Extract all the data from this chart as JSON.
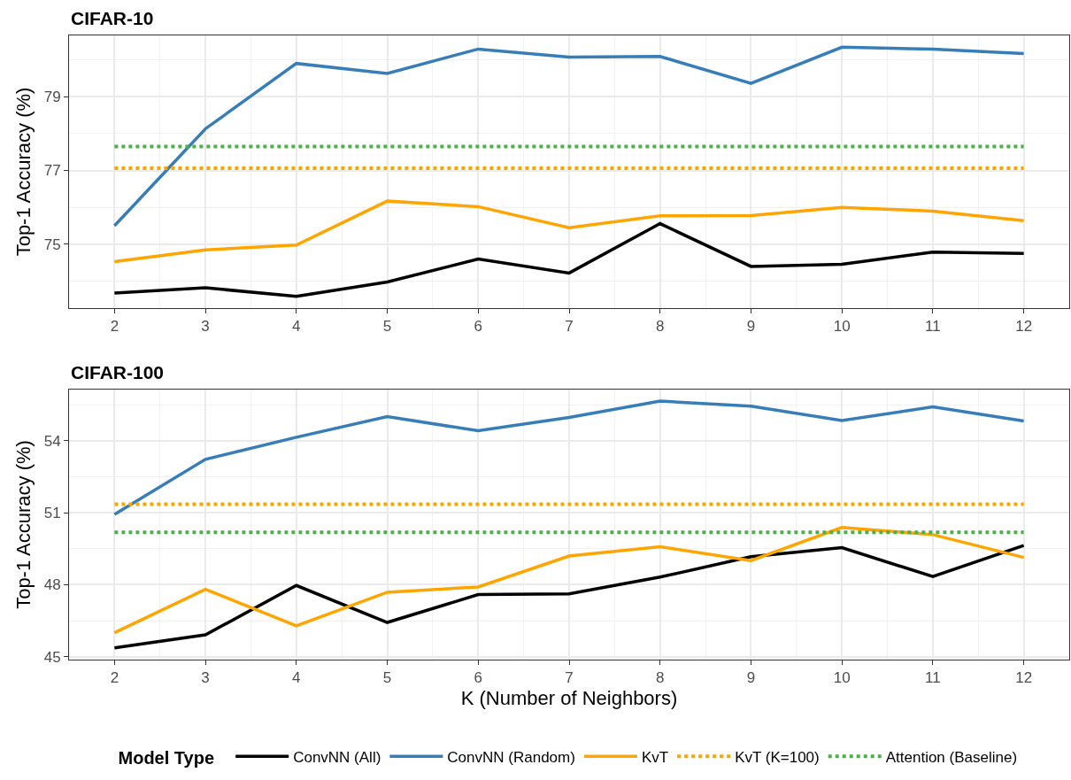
{
  "chart_data": [
    {
      "type": "line",
      "title": "CIFAR-10",
      "ylabel": "Top-1 Accuracy (%)",
      "x": [
        2,
        3,
        4,
        5,
        6,
        7,
        8,
        9,
        10,
        11,
        12
      ],
      "series": [
        {
          "color": "#000000",
          "values": [
            73.68,
            73.82,
            73.59,
            73.98,
            74.6,
            74.22,
            75.56,
            74.4,
            74.46,
            74.79,
            74.75
          ]
        },
        {
          "color": "#377eb8",
          "values": [
            75.5,
            78.13,
            79.9,
            79.63,
            80.29,
            80.07,
            80.09,
            79.36,
            80.34,
            80.29,
            80.17
          ]
        },
        {
          "color": "#ffa500",
          "values": [
            74.53,
            74.85,
            74.98,
            76.17,
            76.02,
            75.45,
            75.77,
            75.78,
            76.0,
            75.9,
            75.64
          ]
        },
        {
          "color": "#ffa500",
          "line_style": "dotted",
          "values": [
            77.06,
            77.06,
            77.06,
            77.06,
            77.06,
            77.06,
            77.06,
            77.06,
            77.06,
            77.06,
            77.06
          ]
        },
        {
          "color": "#4daf4a",
          "line_style": "dotted",
          "values": [
            77.65,
            77.65,
            77.65,
            77.65,
            77.65,
            77.65,
            77.65,
            77.65,
            77.65,
            77.65,
            77.65
          ]
        }
      ],
      "xlim": [
        1.5,
        12.5
      ],
      "xticks": [
        2,
        3,
        4,
        5,
        6,
        7,
        8,
        9,
        10,
        11,
        12
      ],
      "ylim": [
        73.27,
        80.66
      ],
      "yticks": [
        75,
        77,
        79
      ],
      "grid": true,
      "line_style": "solid"
    },
    {
      "type": "line",
      "title": "CIFAR-100",
      "xlabel": "K (Number of Neighbors)",
      "ylabel": "Top-1 Accuracy (%)",
      "legend_title": "Model Type",
      "x": [
        2,
        3,
        4,
        5,
        6,
        7,
        8,
        9,
        10,
        11,
        12
      ],
      "series": [
        {
          "name": "ConvNN (All)",
          "color": "#000000",
          "values": [
            45.37,
            45.91,
            47.97,
            46.43,
            47.59,
            47.62,
            48.32,
            49.17,
            49.55,
            48.34,
            49.64
          ]
        },
        {
          "name": "ConvNN (Random)",
          "color": "#377eb8",
          "values": [
            50.93,
            53.23,
            54.15,
            55.01,
            54.42,
            54.98,
            55.66,
            55.45,
            54.85,
            55.42,
            54.83
          ]
        },
        {
          "name": "KvT",
          "color": "#ffa500",
          "values": [
            46.0,
            47.81,
            46.29,
            47.69,
            47.91,
            49.2,
            49.59,
            49.01,
            50.39,
            50.09,
            49.14
          ]
        },
        {
          "name": "KvT (K=100)",
          "color": "#ffa500",
          "line_style": "dotted",
          "values": [
            51.36,
            51.36,
            51.36,
            51.36,
            51.36,
            51.36,
            51.36,
            51.36,
            51.36,
            51.36,
            51.36
          ]
        },
        {
          "name": "Attention (Baseline)",
          "color": "#4daf4a",
          "line_style": "dotted",
          "values": [
            50.19,
            50.19,
            50.19,
            50.19,
            50.19,
            50.19,
            50.19,
            50.19,
            50.19,
            50.19,
            50.19
          ]
        }
      ],
      "xlim": [
        1.5,
        12.5
      ],
      "xticks": [
        2,
        3,
        4,
        5,
        6,
        7,
        8,
        9,
        10,
        11,
        12
      ],
      "ylim": [
        44.88,
        56.14
      ],
      "yticks": [
        45,
        48,
        51,
        54
      ],
      "grid": true,
      "legend": "bottom",
      "line_style": "solid"
    }
  ]
}
